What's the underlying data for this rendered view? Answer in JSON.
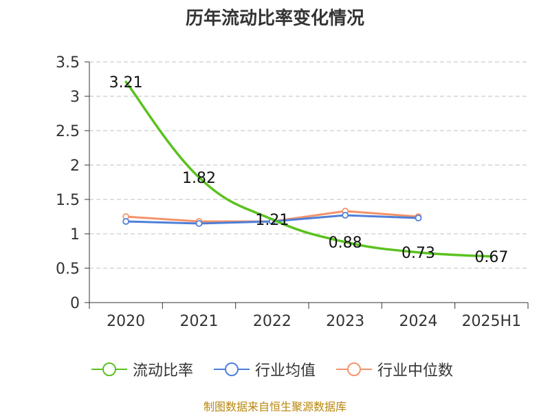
{
  "title": "历年流动比率变化情况",
  "source": "制图数据来自恒生聚源数据库",
  "colors": {
    "current_ratio": "#5ac21f",
    "industry_avg": "#4e7fd8",
    "industry_median": "#f5926a",
    "grid": "#cccccc",
    "axis": "#333333"
  },
  "chart_data": {
    "type": "line",
    "categories": [
      "2020",
      "2021",
      "2022",
      "2023",
      "2024",
      "2025H1"
    ],
    "ylim": [
      0,
      3.5
    ],
    "yticks": [
      "0",
      "0.5",
      "1",
      "1.5",
      "2",
      "2.5",
      "3",
      "3.5"
    ],
    "grid": true,
    "legend_position": "bottom",
    "series": [
      {
        "name": "流动比率",
        "color_key": "current_ratio",
        "markers": false,
        "values": [
          3.21,
          1.82,
          1.21,
          0.88,
          0.73,
          0.67
        ],
        "labels": [
          "3.21",
          "1.82",
          "1.21",
          "0.88",
          "0.73",
          "0.67"
        ]
      },
      {
        "name": "行业均值",
        "color_key": "industry_avg",
        "markers": true,
        "values": [
          1.18,
          1.15,
          1.18,
          1.27,
          1.23,
          null
        ]
      },
      {
        "name": "行业中位数",
        "color_key": "industry_median",
        "markers": true,
        "values": [
          1.25,
          1.18,
          1.18,
          1.33,
          1.25,
          null
        ]
      }
    ]
  }
}
